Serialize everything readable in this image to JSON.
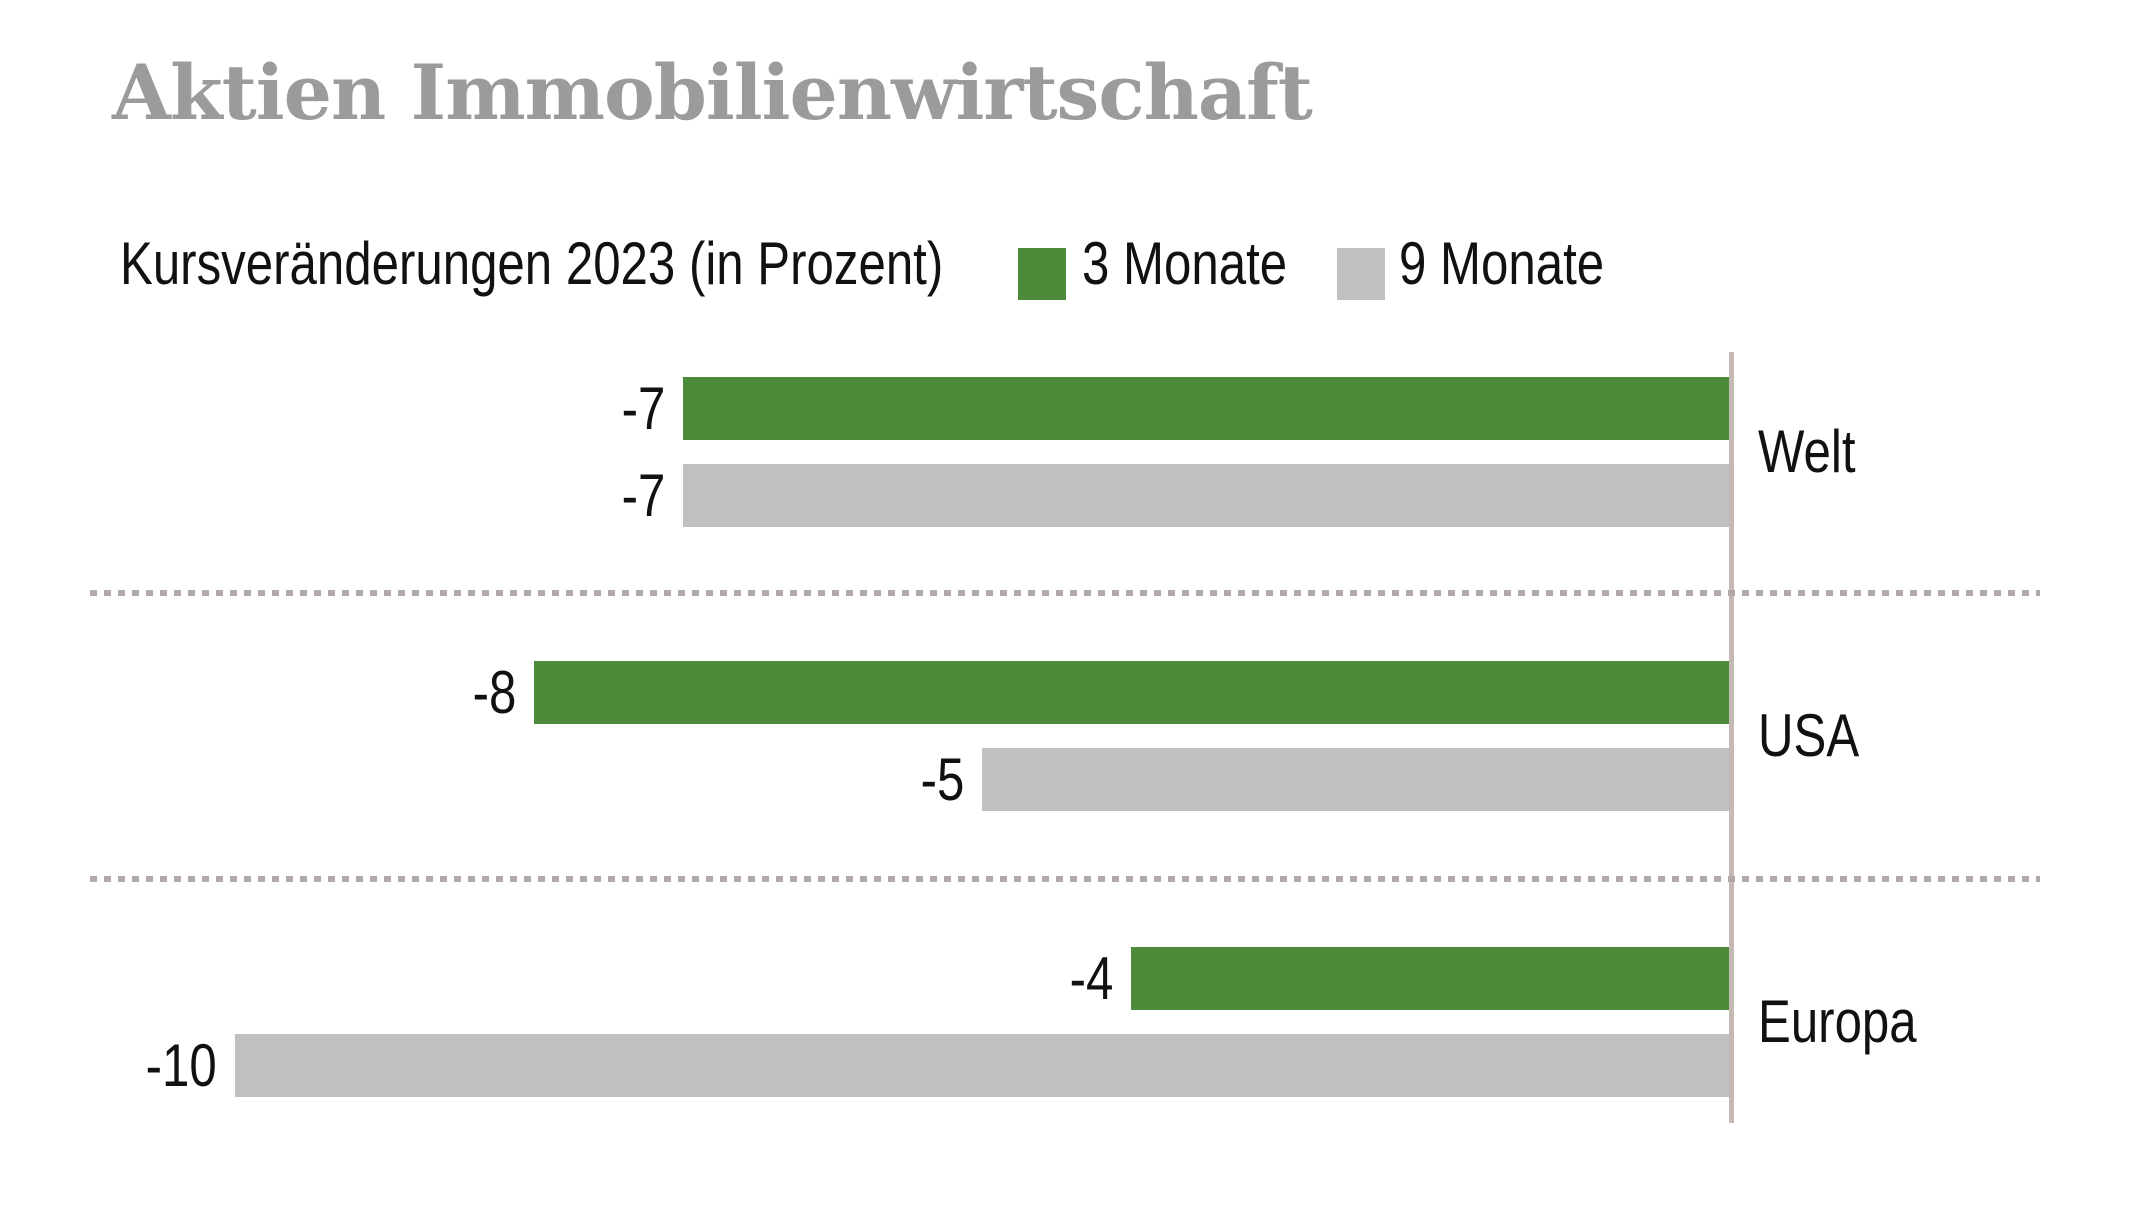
{
  "title": "Aktien Immobilienwirtschaft",
  "subtitle": "Kursveränderungen 2023 (in Prozent)",
  "legend": [
    {
      "label": "3 Monate",
      "color": "#4d8a39"
    },
    {
      "label": "9 Monate",
      "color": "#bfc0c1"
    }
  ],
  "chart_data": {
    "type": "bar",
    "orientation": "horizontal",
    "title": "Aktien Immobilienwirtschaft",
    "subtitle": "Kursveränderungen 2023 (in Prozent)",
    "unit": "Prozent",
    "categories": [
      "Welt",
      "USA",
      "Europa"
    ],
    "series": [
      {
        "name": "3 Monate",
        "color": "#4d8a39",
        "values": [
          -7,
          -8,
          -4
        ]
      },
      {
        "name": "9 Monate",
        "color": "#bfc0c1",
        "values": [
          -7,
          -5,
          -10
        ]
      }
    ],
    "xlim": [
      -10.5,
      0
    ],
    "zero_axis_side": "right",
    "grid": "dashed-horizontal-separators-between-categories",
    "legend_position": "top",
    "colors": {
      "title_text": "#9b9b9b",
      "label_text": "#111111",
      "axis_line": "#c5b9b4",
      "separator": "#b3a9a9",
      "background": "#ffffff"
    }
  }
}
